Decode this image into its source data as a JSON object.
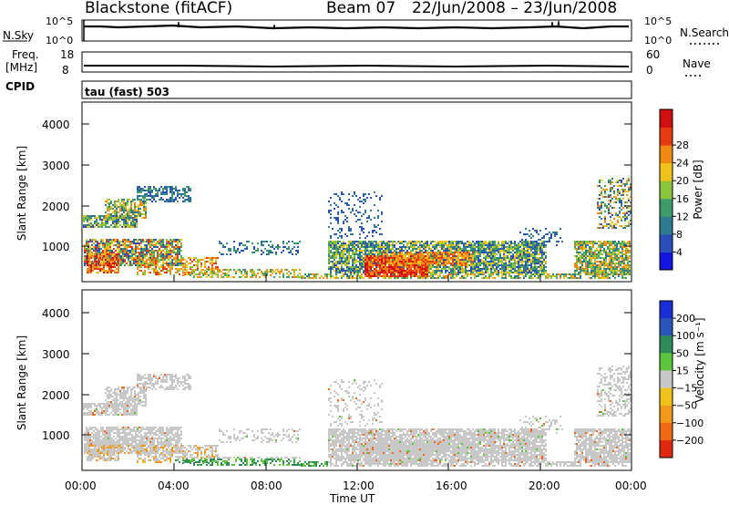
{
  "header": {
    "station": "Blackstone (fitACF)",
    "beam": "Beam 07",
    "dates": "22/Jun/2008 – 23/Jun/2008"
  },
  "nsky_panel": {
    "left_label": "N.Sky",
    "left_ticks": [
      "10^5",
      "10^0"
    ],
    "right_label": "N.Search",
    "right_ticks": [
      "10^5",
      "10^0"
    ]
  },
  "freq_panel": {
    "left_label_1": "Freq.",
    "left_label_2": "[MHz]",
    "left_ticks": [
      "18",
      "8"
    ],
    "right_label": "Nave",
    "right_ticks": [
      "60",
      "0"
    ]
  },
  "cpid": {
    "label": "CPID",
    "mode": "tau (fast) 503"
  },
  "chart_data": [
    {
      "type": "heatmap",
      "quantity": "Power",
      "ylabel": "Slant Range [km]",
      "xlabel": "",
      "ylim": [
        200,
        4600
      ],
      "yticks": [
        1000,
        2000,
        3000,
        4000
      ],
      "colorbar": {
        "label": "Power [dB]",
        "ticks": [
          "4",
          "8",
          "12",
          "16",
          "20",
          "24",
          "28"
        ],
        "colors": [
          "#1515e0",
          "#2a4fb8",
          "#2f7a90",
          "#3f9a6a",
          "#89c43c",
          "#f0c21c",
          "#f08a14",
          "#e63a12",
          "#d01010"
        ]
      }
    },
    {
      "type": "heatmap",
      "quantity": "Velocity",
      "ylabel": "Slant Range [km]",
      "xlabel": "Time UT",
      "ylim": [
        200,
        4600
      ],
      "yticks": [
        1000,
        2000,
        3000,
        4000
      ],
      "xticks": [
        "00:00",
        "04:00",
        "08:00",
        "12:00",
        "16:00",
        "20:00",
        "00:00"
      ],
      "colorbar": {
        "label": "Velocity [m s⁻¹]",
        "ticks": [
          "200",
          "100",
          "50",
          "15",
          "−15",
          "−50",
          "−100",
          "−200"
        ],
        "colors": [
          "#1a2ed8",
          "#2a55b8",
          "#2f8a5a",
          "#5cc53c",
          "#c8c8c8",
          "#f0c21c",
          "#f09a1c",
          "#ef6a14",
          "#e02a10"
        ]
      }
    }
  ]
}
